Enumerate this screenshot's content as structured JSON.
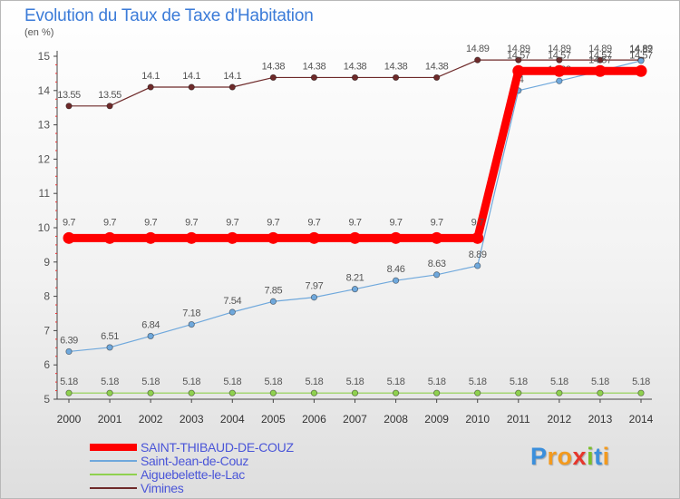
{
  "title": "Evolution du Taux de Taxe d'Habitation",
  "unit": "(en %)",
  "logo": {
    "letters": [
      "P",
      "r",
      "o",
      "x",
      "i",
      "t",
      "i"
    ],
    "colors": [
      "#3b8fdc",
      "#f39a1e",
      "#f39a1e",
      "#e6362c",
      "#7bbf2a",
      "#3b8fdc",
      "#f39a1e"
    ]
  },
  "chart_data": {
    "type": "line",
    "x": [
      2000,
      2001,
      2002,
      2003,
      2004,
      2005,
      2006,
      2007,
      2008,
      2009,
      2010,
      2011,
      2012,
      2013,
      2014
    ],
    "ylim": [
      5,
      15
    ],
    "yticks": [
      5,
      6,
      7,
      8,
      9,
      10,
      11,
      12,
      13,
      14,
      15
    ],
    "grid": false,
    "legend_position": "bottom-left",
    "series": [
      {
        "name": "Vimines",
        "color": "#6e2a2a",
        "style": "thin",
        "values": [
          13.55,
          13.55,
          14.1,
          14.1,
          14.1,
          14.38,
          14.38,
          14.38,
          14.38,
          14.38,
          14.89,
          14.89,
          14.89,
          14.89,
          14.89
        ],
        "labels": [
          "13.55",
          "13.55",
          "14.1",
          "14.1",
          "14.1",
          "14.38",
          "14.38",
          "14.38",
          "14.38",
          "14.38",
          "14.89",
          "14.89",
          "14.89",
          "14.89",
          "14.89"
        ],
        "label_pos": "above"
      },
      {
        "name": "Aiguebelette-le-Lac",
        "color": "#8fd14f",
        "style": "thin",
        "values": [
          5.18,
          5.18,
          5.18,
          5.18,
          5.18,
          5.18,
          5.18,
          5.18,
          5.18,
          5.18,
          5.18,
          5.18,
          5.18,
          5.18,
          5.18
        ],
        "labels": [
          "5.18",
          "5.18",
          "5.18",
          "5.18",
          "5.18",
          "5.18",
          "5.18",
          "5.18",
          "5.18",
          "5.18",
          "5.18",
          "5.18",
          "5.18",
          "5.18",
          "5.18"
        ],
        "label_pos": "above"
      },
      {
        "name": "Saint-Jean-de-Couz",
        "color": "#6fa8dc",
        "style": "thin",
        "values": [
          6.39,
          6.51,
          6.84,
          7.18,
          7.54,
          7.85,
          7.97,
          8.21,
          8.46,
          8.63,
          8.89,
          14.0,
          14.28,
          14.57,
          14.87
        ],
        "labels": [
          "6.39",
          "6.51",
          "6.84",
          "7.18",
          "7.54",
          "7.85",
          "7.97",
          "8.21",
          "8.46",
          "8.63",
          "8.89",
          "14",
          "14.28",
          "14.57",
          "14.87"
        ],
        "label_pos": "above"
      },
      {
        "name": "SAINT-THIBAUD-DE-COUZ",
        "color": "#ff0000",
        "style": "thick",
        "values": [
          9.7,
          9.7,
          9.7,
          9.7,
          9.7,
          9.7,
          9.7,
          9.7,
          9.7,
          9.7,
          9.7,
          14.57,
          14.57,
          14.57,
          14.57
        ],
        "labels": [
          "9.7",
          "9.7",
          "9.7",
          "9.7",
          "9.7",
          "9.7",
          "9.7",
          "9.7",
          "9.7",
          "9.7",
          "9.7",
          "14.57",
          "14.57",
          "14.57",
          "14.57"
        ],
        "label_pos": "above"
      }
    ],
    "legend_order": [
      "SAINT-THIBAUD-DE-COUZ",
      "Saint-Jean-de-Couz",
      "Aiguebelette-le-Lac",
      "Vimines"
    ]
  }
}
